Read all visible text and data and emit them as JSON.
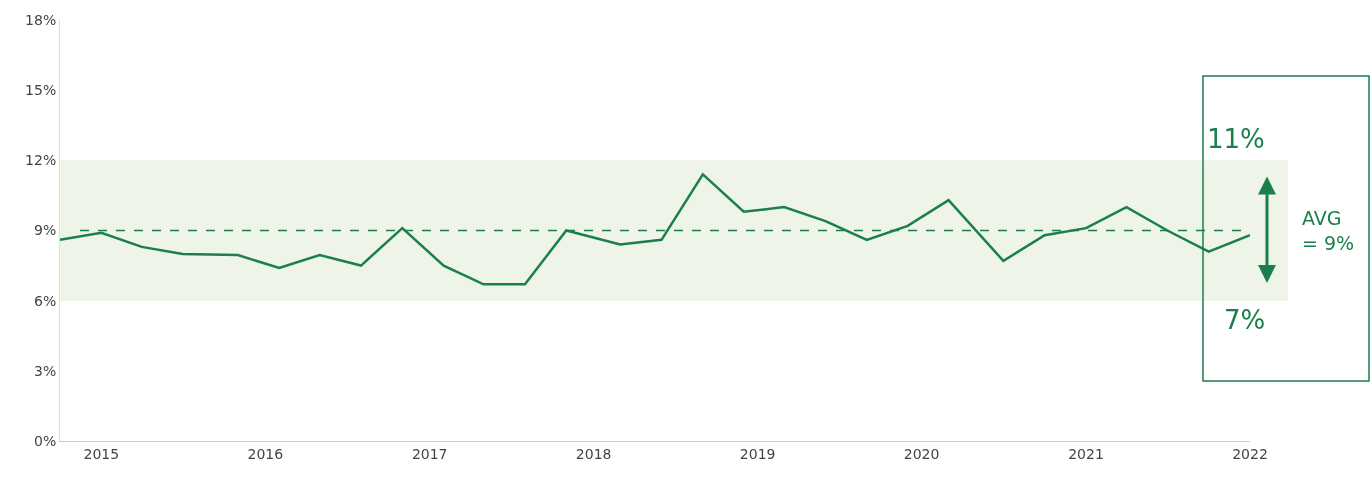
{
  "chart_data": {
    "type": "line",
    "x": [
      "2014-10",
      "2015-01",
      "2015-04",
      "2015-07",
      "2015-11",
      "2016-02",
      "2016-05",
      "2016-08",
      "2016-11",
      "2017-02",
      "2017-05",
      "2017-08",
      "2017-11",
      "2018-03",
      "2018-06",
      "2018-09",
      "2018-12",
      "2019-03",
      "2019-06",
      "2019-09",
      "2019-12",
      "2020-03",
      "2020-07",
      "2020-10",
      "2021-01",
      "2021-04",
      "2021-07",
      "2021-10",
      "2022-01"
    ],
    "series": [
      {
        "color": "#1a7f4b",
        "values": [
          8.6,
          8.9,
          8.3,
          8.0,
          7.95,
          7.4,
          7.95,
          7.5,
          9.1,
          7.5,
          6.7,
          6.7,
          9.0,
          8.4,
          8.6,
          11.4,
          9.8,
          10.0,
          9.4,
          8.6,
          9.2,
          10.3,
          7.7,
          8.8,
          9.1,
          10.0,
          9.0,
          8.1,
          8.8
        ]
      }
    ],
    "xlim": [
      "2014-10",
      "2022-01"
    ],
    "xticks": [
      "2015",
      "2016",
      "2017",
      "2018",
      "2019",
      "2020",
      "2021",
      "2022"
    ],
    "ylim": [
      0,
      18
    ],
    "yticks": [
      {
        "value": 0,
        "label": "0%"
      },
      {
        "value": 3,
        "label": "3%"
      },
      {
        "value": 6,
        "label": "6%"
      },
      {
        "value": 9,
        "label": "9%"
      },
      {
        "value": 12,
        "label": "12%"
      },
      {
        "value": 15,
        "label": "15%"
      },
      {
        "value": 18,
        "label": "18%"
      }
    ],
    "ref_lines": [
      {
        "axis": "y",
        "value": 9,
        "label": "AVG\n= 9%",
        "color": "#1a7f4b",
        "line_style": "dashed"
      }
    ],
    "bands": [
      {
        "axis": "y",
        "from": 6,
        "to": 12,
        "label": null,
        "color": "#eef5e8"
      }
    ],
    "annotations": [
      "11%",
      "7%"
    ],
    "grid": false,
    "marker": "none",
    "line_style": "solid"
  }
}
